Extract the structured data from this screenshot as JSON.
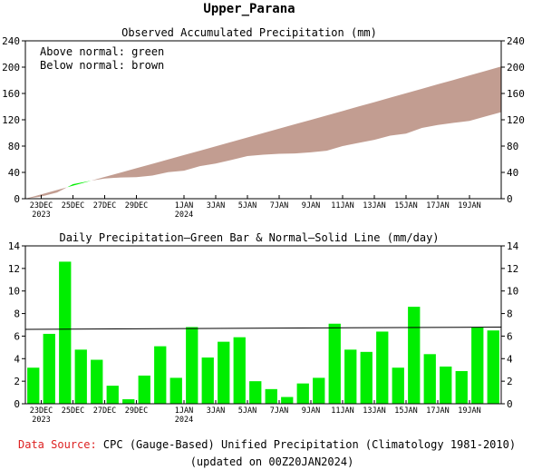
{
  "page_title": "Upper_Parana",
  "chart_data": [
    {
      "type": "area",
      "title": "Observed Accumulated Precipitation (mm)",
      "legend_lines": [
        "Above normal: green",
        "Below normal: brown"
      ],
      "ylim": [
        0,
        240
      ],
      "yticks": [
        "0",
        "40",
        "80",
        "120",
        "160",
        "200",
        "240"
      ],
      "xticks": [
        {
          "day": 1,
          "label": "23DEC",
          "label2": "2023"
        },
        {
          "day": 3,
          "label": "25DEC",
          "label2": ""
        },
        {
          "day": 5,
          "label": "27DEC",
          "label2": ""
        },
        {
          "day": 7,
          "label": "29DEC",
          "label2": ""
        },
        {
          "day": 10,
          "label": "1JAN",
          "label2": "2024"
        },
        {
          "day": 12,
          "label": "3JAN",
          "label2": ""
        },
        {
          "day": 14,
          "label": "5JAN",
          "label2": ""
        },
        {
          "day": 16,
          "label": "7JAN",
          "label2": ""
        },
        {
          "day": 18,
          "label": "9JAN",
          "label2": ""
        },
        {
          "day": 20,
          "label": "11JAN",
          "label2": ""
        },
        {
          "day": 22,
          "label": "13JAN",
          "label2": ""
        },
        {
          "day": 24,
          "label": "15JAN",
          "label2": ""
        },
        {
          "day": 26,
          "label": "17JAN",
          "label2": ""
        },
        {
          "day": 28,
          "label": "19JAN",
          "label2": ""
        }
      ],
      "above_color": "#00ee00",
      "below_color": "#c29d91",
      "observed": [
        3.2,
        9.4,
        22.0,
        26.8,
        30.7,
        32.3,
        32.7,
        35.2,
        40.3,
        42.6,
        49.4,
        53.5,
        59.0,
        64.9,
        66.9,
        68.2,
        68.8,
        70.6,
        72.9,
        80.0,
        84.8,
        89.4,
        95.8,
        99.0,
        107.6,
        112.0,
        115.3,
        118.2,
        125.0,
        131.5
      ],
      "normal": [
        6.6,
        13.2,
        19.8,
        26.4,
        33.1,
        39.7,
        46.3,
        53.0,
        59.7,
        66.3,
        73.0,
        79.7,
        86.4,
        93.1,
        99.8,
        106.5,
        113.2,
        119.9,
        126.6,
        133.3,
        140.1,
        146.8,
        153.6,
        160.3,
        167.1,
        173.9,
        180.6,
        187.4,
        194.2,
        201.0
      ]
    },
    {
      "type": "bar",
      "title": "Daily Precipitation—Green Bar & Normal—Solid Line (mm/day)",
      "ylim": [
        0,
        14
      ],
      "yticks": [
        "0",
        "2",
        "4",
        "6",
        "8",
        "10",
        "12",
        "14"
      ],
      "bar_color": "#00ee00",
      "daily": [
        3.2,
        6.2,
        12.6,
        4.8,
        3.9,
        1.6,
        0.4,
        2.5,
        5.1,
        2.3,
        6.8,
        4.1,
        5.5,
        5.9,
        2.0,
        1.3,
        0.6,
        1.8,
        2.3,
        7.1,
        4.8,
        4.6,
        6.4,
        3.2,
        8.6,
        4.4,
        3.3,
        2.9,
        6.8,
        6.5
      ],
      "normal_start": 6.6,
      "normal_end": 6.8
    }
  ],
  "footer": {
    "source_label": "Data Source:",
    "source_text": " CPC (Gauge-Based) Unified Precipitation (Climatology 1981-2010)",
    "updated": "(updated on 00Z20JAN2024)"
  }
}
